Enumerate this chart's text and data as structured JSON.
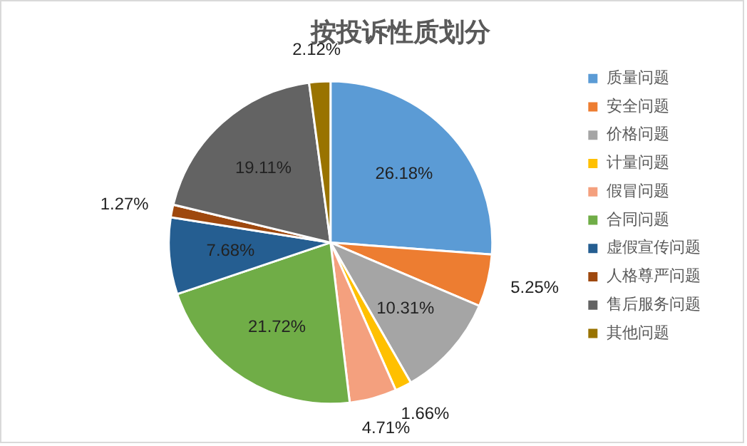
{
  "chart_data": {
    "type": "pie",
    "title": "按投诉性质划分",
    "categories": [
      "质量问题",
      "安全问题",
      "价格问题",
      "计量问题",
      "假冒问题",
      "合同问题",
      "虚假宣传问题",
      "人格尊严问题",
      "售后服务问题",
      "其他问题"
    ],
    "values": [
      26.18,
      5.25,
      10.31,
      1.66,
      4.71,
      21.72,
      7.68,
      1.27,
      19.11,
      2.12
    ],
    "value_labels": [
      "26.18%",
      "5.25%",
      "10.31%",
      "1.66%",
      "4.71%",
      "21.72%",
      "7.68%",
      "1.27%",
      "19.11%",
      "2.12%"
    ],
    "colors": [
      "#5b9bd5",
      "#ed7d31",
      "#a5a5a5",
      "#ffc000",
      "#f4a07e",
      "#70ad47",
      "#255e91",
      "#9e480e",
      "#636363",
      "#997300"
    ],
    "legend": "right"
  }
}
